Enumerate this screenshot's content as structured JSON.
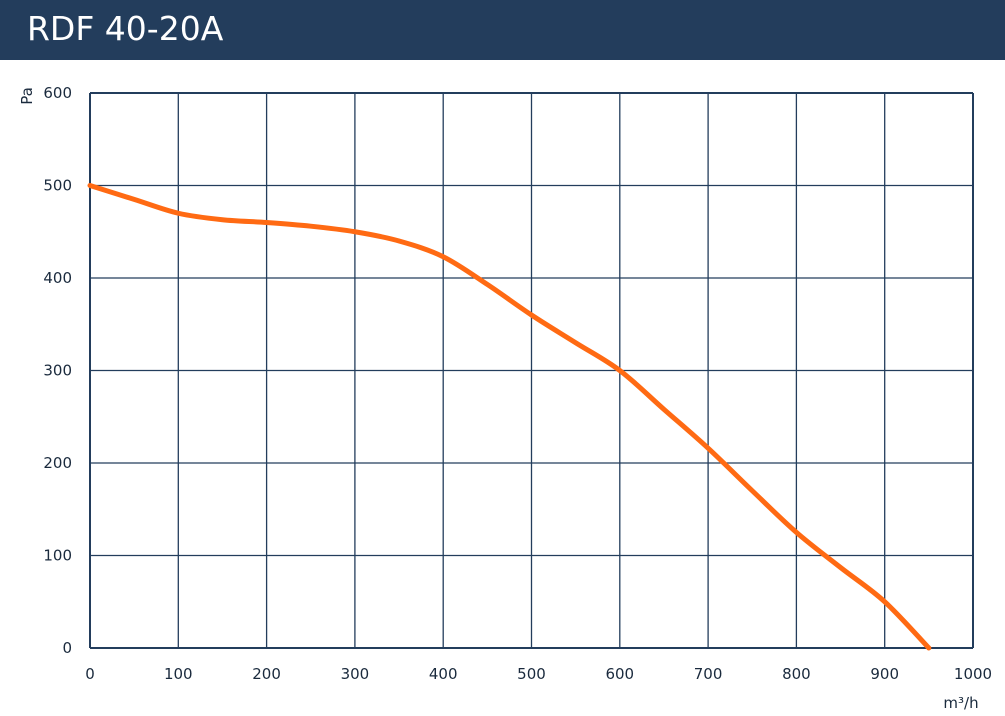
{
  "header": {
    "title": "RDF 40-20A"
  },
  "chart_data": {
    "type": "line",
    "title": "RDF 40-20A",
    "xlabel": "m³/h",
    "ylabel": "Pa",
    "xlim": [
      0,
      1000
    ],
    "ylim": [
      0,
      600
    ],
    "xticks": [
      0,
      100,
      200,
      300,
      400,
      500,
      600,
      700,
      800,
      900,
      1000
    ],
    "yticks": [
      0,
      100,
      200,
      300,
      400,
      500,
      600
    ],
    "xtick_labels": [
      "0",
      "100",
      "200",
      "300",
      "400",
      "500",
      "600",
      "700",
      "800",
      "900",
      "1000"
    ],
    "ytick_labels": [
      "0",
      "100",
      "200",
      "300",
      "400",
      "500",
      "600"
    ],
    "grid": true,
    "legend": "none",
    "colors": {
      "line": "#ff6a13",
      "grid": "#233d5c",
      "header": "#233d5c"
    },
    "series": [
      {
        "x": [
          0,
          50,
          100,
          150,
          200,
          250,
          300,
          350,
          400,
          450,
          500,
          550,
          600,
          650,
          700,
          750,
          800,
          850,
          900,
          950
        ],
        "y": [
          500,
          485,
          470,
          463,
          460,
          456,
          450,
          440,
          423,
          393,
          360,
          330,
          300,
          258,
          216,
          170,
          125,
          87,
          50,
          0
        ]
      }
    ]
  }
}
